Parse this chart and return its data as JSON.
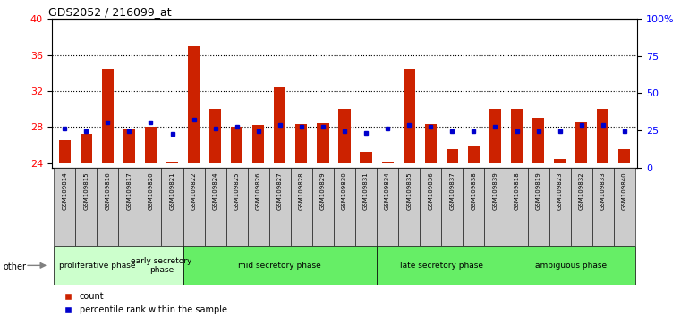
{
  "title": "GDS2052 / 216099_at",
  "samples": [
    "GSM109814",
    "GSM109815",
    "GSM109816",
    "GSM109817",
    "GSM109820",
    "GSM109821",
    "GSM109822",
    "GSM109824",
    "GSM109825",
    "GSM109826",
    "GSM109827",
    "GSM109828",
    "GSM109829",
    "GSM109830",
    "GSM109831",
    "GSM109834",
    "GSM109835",
    "GSM109836",
    "GSM109837",
    "GSM109838",
    "GSM109839",
    "GSM109818",
    "GSM109819",
    "GSM109823",
    "GSM109832",
    "GSM109833",
    "GSM109840"
  ],
  "count_values": [
    26.5,
    27.2,
    34.5,
    27.8,
    28.0,
    24.2,
    37.0,
    30.0,
    28.0,
    28.2,
    32.5,
    28.3,
    28.4,
    30.0,
    25.2,
    24.2,
    34.5,
    28.3,
    25.5,
    25.8,
    30.0,
    30.0,
    29.0,
    24.5,
    28.5,
    30.0,
    25.5
  ],
  "percentile_values": [
    27.8,
    27.5,
    28.5,
    27.5,
    28.5,
    27.2,
    28.8,
    27.8,
    28.0,
    27.5,
    28.2,
    28.0,
    28.0,
    27.5,
    27.3,
    27.8,
    28.2,
    28.0,
    27.5,
    27.5,
    28.0,
    27.5,
    27.5,
    27.5,
    28.2,
    28.2,
    27.5
  ],
  "phase_defs": [
    {
      "label": "proliferative phase",
      "start": 0,
      "end": 3,
      "color": "#ccffcc"
    },
    {
      "label": "early secretory\nphase",
      "start": 4,
      "end": 5,
      "color": "#ccffcc"
    },
    {
      "label": "mid secretory phase",
      "start": 6,
      "end": 14,
      "color": "#66ee66"
    },
    {
      "label": "late secretory phase",
      "start": 15,
      "end": 20,
      "color": "#66ee66"
    },
    {
      "label": "ambiguous phase",
      "start": 21,
      "end": 26,
      "color": "#66ee66"
    }
  ],
  "ylim_left": [
    23.5,
    40
  ],
  "ylim_right": [
    0,
    100
  ],
  "yticks_left": [
    24,
    28,
    32,
    36,
    40
  ],
  "yticks_right": [
    0,
    25,
    50,
    75,
    100
  ],
  "dotted_lines": [
    28,
    32,
    36
  ],
  "bar_color": "#cc2200",
  "percentile_color": "#0000cc",
  "tick_bg_color": "#cccccc",
  "plot_bg": "#ffffff"
}
